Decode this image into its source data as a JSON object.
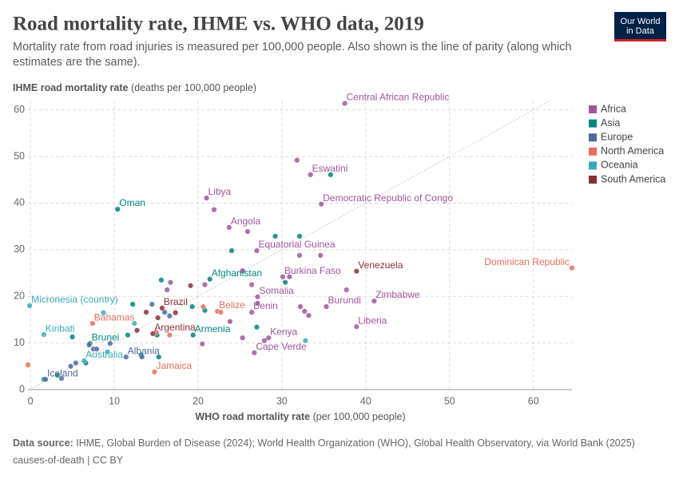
{
  "chart_data": {
    "type": "scatter",
    "title": "Road mortality rate, IHME vs. WHO data, 2019",
    "subtitle": "Mortality rate from road injuries is measured per 100,000 people. Also shown is the line of parity (along which estimates are the same).",
    "y_label": "IHME road mortality rate",
    "y_label_unit": "(deaths per 100,000 people)",
    "x_label": "WHO road mortality rate",
    "x_label_unit": "(per 100,000 people)",
    "source_heading": "Data source:",
    "source": "IHME, Global Burden of Disease (2024); World Health Organization (WHO), Global Health Observatory, via World Bank (2025)",
    "note": "causes-of-death | CC BY",
    "logo": [
      "Our World",
      "in Data"
    ],
    "xlim": [
      -0.3,
      64.6
    ],
    "ylim": [
      0,
      62
    ],
    "xticks": [
      0,
      10,
      20,
      30,
      40,
      50,
      60
    ],
    "yticks": [
      0,
      10,
      20,
      30,
      40,
      50,
      60
    ],
    "grid": true,
    "legend": "right",
    "parity_line": true,
    "series": [
      {
        "name": "Africa",
        "color": "#a2559c",
        "x": [
          37.5,
          33.4,
          31.8,
          21.0,
          21.9,
          34.7,
          23.7,
          25.9,
          27.0,
          32.1,
          34.6,
          30.1,
          30.9,
          25.3,
          27.1,
          26.4,
          37.7,
          41.0,
          35.3,
          32.2,
          32.7,
          33.2,
          26.4,
          38.9,
          28.4,
          27.9,
          26.7,
          20.5,
          25.3,
          16.7,
          16.3,
          20.8,
          27.1,
          23.8
        ],
        "y": [
          61.4,
          46.1,
          49.2,
          41.1,
          38.6,
          39.8,
          34.8,
          33.9,
          29.8,
          28.8,
          28.8,
          24.2,
          24.2,
          25.5,
          19.9,
          22.5,
          21.4,
          19.0,
          17.8,
          17.8,
          16.8,
          15.9,
          16.6,
          13.5,
          11.1,
          10.5,
          7.9,
          9.8,
          11.1,
          23.0,
          21.4,
          22.5,
          18.5,
          14.6
        ],
        "labels": [
          "Central African Republic",
          "Eswatini",
          null,
          "Libya",
          null,
          "Democratic Republic of Congo",
          "Angola",
          null,
          "Equatorial Guinea",
          null,
          null,
          "Burkina Faso",
          null,
          null,
          "Somalia",
          null,
          null,
          "Zimbabwe",
          "Burundi",
          null,
          null,
          null,
          "Benin",
          "Liberia",
          "Kenya",
          null,
          "Cape Verde",
          null,
          null,
          null,
          null,
          null,
          null,
          null
        ]
      },
      {
        "name": "Asia",
        "color": "#00847e",
        "x": [
          10.4,
          21.4,
          29.2,
          32.1,
          35.8,
          24.0,
          30.4,
          19.4,
          7.1,
          15.6,
          12.2,
          19.3,
          27.0,
          20.8,
          11.6,
          13.2,
          15.3,
          6.6,
          5.0,
          3.2,
          1.6,
          15.1
        ],
        "y": [
          38.7,
          23.7,
          32.9,
          32.9,
          46.1,
          29.8,
          23.0,
          11.7,
          9.9,
          23.5,
          18.3,
          17.8,
          13.4,
          17.0,
          11.7,
          7.4,
          7.0,
          5.7,
          11.3,
          3.1,
          2.2,
          11.7
        ],
        "labels": [
          "Oman",
          "Afghanistan",
          null,
          null,
          null,
          null,
          null,
          "Armenia",
          "Brunei",
          null,
          null,
          null,
          null,
          null,
          null,
          null,
          null,
          null,
          null,
          null,
          null,
          null
        ]
      },
      {
        "name": "Europe",
        "color": "#4c6a9c",
        "x": [
          1.8,
          3.7,
          11.4,
          7.5,
          7.9,
          7.0,
          4.8,
          5.4,
          14.5,
          16.0,
          16.6,
          9.5,
          13.3
        ],
        "y": [
          2.2,
          2.4,
          7.0,
          8.7,
          8.7,
          9.6,
          5.0,
          5.7,
          18.3,
          16.6,
          15.8,
          9.9,
          7.0
        ],
        "labels": [
          "Iceland",
          null,
          "Albania",
          null,
          null,
          null,
          null,
          null,
          null,
          null,
          null,
          null,
          null
        ]
      },
      {
        "name": "North America",
        "color": "#e56e5a",
        "x": [
          64.6,
          22.3,
          7.4,
          14.8,
          -0.3,
          20.6,
          22.7,
          16.6,
          15.0
        ],
        "y": [
          26.1,
          16.8,
          14.2,
          3.8,
          5.3,
          17.8,
          16.6,
          11.7,
          12.3
        ],
        "labels": [
          "Dominican Republic",
          "Belize",
          "Bahamas",
          "Jamaica",
          null,
          null,
          null,
          null,
          null
        ]
      },
      {
        "name": "Oceania",
        "color": "#38aaba",
        "x": [
          -0.1,
          1.6,
          6.4,
          32.8,
          9.2,
          8.7,
          12.4
        ],
        "y": [
          18.0,
          11.8,
          6.2,
          10.5,
          8.1,
          16.5,
          14.2
        ],
        "labels": [
          "Micronesia (country)",
          "Kiribati",
          "Australia",
          null,
          null,
          null,
          null
        ]
      },
      {
        "name": "South America",
        "color": "#883039",
        "x": [
          38.9,
          15.7,
          14.6,
          19.1,
          15.2,
          17.3,
          13.8,
          12.7
        ],
        "y": [
          25.4,
          17.5,
          12.0,
          22.3,
          15.4,
          16.5,
          16.6,
          12.7
        ],
        "labels": [
          "Venezuela",
          "Brazil",
          "Argentina",
          null,
          null,
          null,
          null,
          null
        ]
      }
    ]
  }
}
